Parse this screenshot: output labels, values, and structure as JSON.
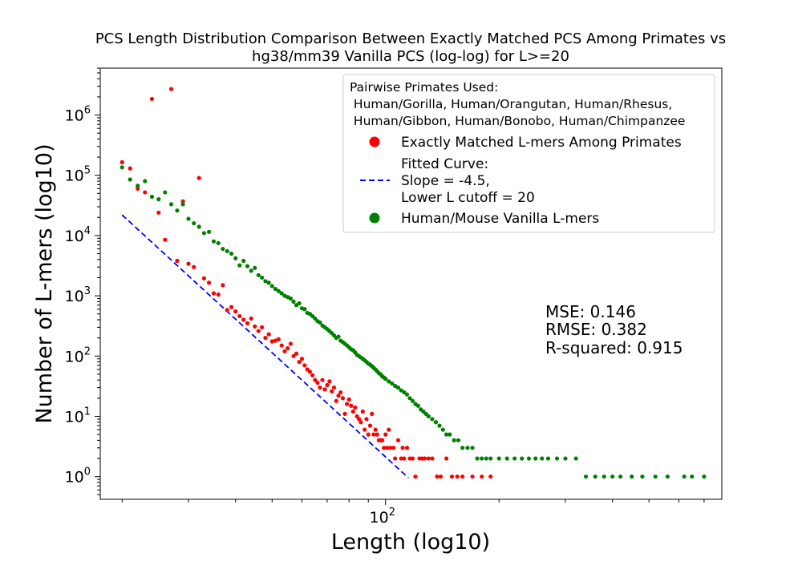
{
  "chart_data": {
    "type": "scatter",
    "title_lines": [
      "PCS Length Distribution Comparison Between Exactly Matched PCS Among Primates vs",
      "hg38/mm39 Vanilla PCS (log-log) for L>=20"
    ],
    "xlabel": "Length (log10)",
    "ylabel": "Number of L-mers (log10)",
    "x_scale": "log",
    "y_scale": "log",
    "xlim": [
      17.5,
      780
    ],
    "ylim": [
      0.42,
      6000000
    ],
    "x_ticks": [
      {
        "value": 100,
        "base": "10",
        "exp": "2"
      }
    ],
    "y_ticks": [
      {
        "value": 1,
        "base": "10",
        "exp": "0"
      },
      {
        "value": 10,
        "base": "10",
        "exp": "1"
      },
      {
        "value": 100,
        "base": "10",
        "exp": "2"
      },
      {
        "value": 1000,
        "base": "10",
        "exp": "3"
      },
      {
        "value": 10000,
        "base": "10",
        "exp": "4"
      },
      {
        "value": 100000,
        "base": "10",
        "exp": "5"
      },
      {
        "value": 1000000,
        "base": "10",
        "exp": "6"
      }
    ],
    "grid": false,
    "legend": {
      "placement": "upper right",
      "title_lines": [
        "Pairwise Primates Used:",
        " Human/Gorilla, Human/Orangutan, Human/Rhesus,",
        " Human/Gibbon, Human/Bonobo, Human/Chimpanzee"
      ],
      "entries": [
        {
          "label_lines": [
            "Exactly Matched L-mers Among Primates"
          ],
          "color": "#ff0000",
          "marker": "circle"
        },
        {
          "label_lines": [
            "Fitted Curve:",
            "Slope = -4.5,",
            "Lower L cutoff = 20"
          ],
          "color": "#0000ff",
          "marker": "dashed-line"
        },
        {
          "label_lines": [
            "Human/Mouse Vanilla L-mers"
          ],
          "color": "#008000",
          "marker": "circle"
        }
      ]
    },
    "stats_lines": [
      "MSE: 0.146",
      "RMSE: 0.382",
      "R-squared: 0.915"
    ],
    "fitted_curve": {
      "slope": -4.5,
      "x_start": 20,
      "x_end": 115,
      "y_start": 22000,
      "y_end": 0.95
    },
    "series": [
      {
        "name": "Exactly Matched L-mers Among Primates",
        "color": "#ff0000",
        "points": [
          [
            20,
            165000
          ],
          [
            21,
            130000
          ],
          [
            22,
            60000
          ],
          [
            23,
            52000
          ],
          [
            24,
            1850000
          ],
          [
            25,
            24000
          ],
          [
            26,
            8500
          ],
          [
            27,
            2700000
          ],
          [
            28,
            3800
          ],
          [
            29,
            37000
          ],
          [
            30,
            3400
          ],
          [
            31,
            3000
          ],
          [
            32,
            90000
          ],
          [
            33,
            1950
          ],
          [
            34,
            1650
          ],
          [
            35,
            1100
          ],
          [
            36,
            1050
          ],
          [
            37,
            1500
          ],
          [
            38,
            580
          ],
          [
            39,
            650
          ],
          [
            40,
            550
          ],
          [
            41,
            460
          ],
          [
            42,
            400
          ],
          [
            43,
            350
          ],
          [
            44,
            420
          ],
          [
            45,
            310
          ],
          [
            46,
            260
          ],
          [
            47,
            300
          ],
          [
            48,
            200
          ],
          [
            49,
            230
          ],
          [
            50,
            175
          ],
          [
            51,
            180
          ],
          [
            52,
            190
          ],
          [
            53,
            150
          ],
          [
            54,
            120
          ],
          [
            55,
            135
          ],
          [
            56,
            160
          ],
          [
            57,
            100
          ],
          [
            58,
            110
          ],
          [
            59,
            80
          ],
          [
            60,
            90
          ],
          [
            61,
            70
          ],
          [
            62,
            60
          ],
          [
            63,
            55
          ],
          [
            64,
            48
          ],
          [
            65,
            40
          ],
          [
            66,
            36
          ],
          [
            67,
            30
          ],
          [
            68,
            40
          ],
          [
            69,
            28
          ],
          [
            70,
            33
          ],
          [
            71,
            38
          ],
          [
            72,
            26
          ],
          [
            73,
            30
          ],
          [
            74,
            18
          ],
          [
            75,
            22
          ],
          [
            76,
            25
          ],
          [
            77,
            20
          ],
          [
            78,
            11
          ],
          [
            79,
            16
          ],
          [
            80,
            19
          ],
          [
            81,
            15
          ],
          [
            82,
            12
          ],
          [
            83,
            14
          ],
          [
            84,
            10
          ],
          [
            85,
            9
          ],
          [
            86,
            8
          ],
          [
            87,
            12
          ],
          [
            88,
            6
          ],
          [
            89,
            9
          ],
          [
            90,
            5
          ],
          [
            91,
            7
          ],
          [
            92,
            11
          ],
          [
            93,
            5
          ],
          [
            94,
            6
          ],
          [
            95,
            5
          ],
          [
            96,
            4
          ],
          [
            97,
            4
          ],
          [
            98,
            4
          ],
          [
            99,
            3
          ],
          [
            100,
            5
          ],
          [
            101,
            3
          ],
          [
            102,
            6
          ],
          [
            103,
            3
          ],
          [
            105,
            3
          ],
          [
            106,
            2
          ],
          [
            108,
            4
          ],
          [
            110,
            2
          ],
          [
            111,
            3
          ],
          [
            112,
            2
          ],
          [
            114,
            3
          ],
          [
            116,
            2
          ],
          [
            118,
            2
          ],
          [
            120,
            1
          ],
          [
            123,
            2
          ],
          [
            125,
            2
          ],
          [
            127,
            2
          ],
          [
            130,
            2
          ],
          [
            133,
            2
          ],
          [
            137,
            1
          ],
          [
            140,
            1
          ],
          [
            145,
            2
          ],
          [
            150,
            1
          ],
          [
            155,
            1
          ],
          [
            160,
            1
          ],
          [
            170,
            1
          ],
          [
            180,
            1
          ],
          [
            190,
            1
          ]
        ]
      },
      {
        "name": "Human/Mouse Vanilla L-mers",
        "color": "#008000",
        "points": [
          [
            20,
            135000
          ],
          [
            21,
            85000
          ],
          [
            22,
            67000
          ],
          [
            23,
            80000
          ],
          [
            24,
            44000
          ],
          [
            25,
            40000
          ],
          [
            26,
            52000
          ],
          [
            27,
            33000
          ],
          [
            28,
            26000
          ],
          [
            29,
            33000
          ],
          [
            30,
            19000
          ],
          [
            31,
            16000
          ],
          [
            32,
            14000
          ],
          [
            33,
            11000
          ],
          [
            34,
            11500
          ],
          [
            35,
            8000
          ],
          [
            36,
            7500
          ],
          [
            37,
            6000
          ],
          [
            38,
            5500
          ],
          [
            39,
            5000
          ],
          [
            40,
            4200
          ],
          [
            41,
            3200
          ],
          [
            42,
            3800
          ],
          [
            43,
            3100
          ],
          [
            44,
            2600
          ],
          [
            45,
            2900
          ],
          [
            46,
            2200
          ],
          [
            47,
            2000
          ],
          [
            48,
            1750
          ],
          [
            49,
            1650
          ],
          [
            50,
            1450
          ],
          [
            51,
            1300
          ],
          [
            52,
            1200
          ],
          [
            53,
            1100
          ],
          [
            54,
            1000
          ],
          [
            55,
            950
          ],
          [
            56,
            900
          ],
          [
            57,
            800
          ],
          [
            58,
            700
          ],
          [
            59,
            750
          ],
          [
            60,
            620
          ],
          [
            61,
            600
          ],
          [
            62,
            520
          ],
          [
            63,
            500
          ],
          [
            64,
            460
          ],
          [
            65,
            420
          ],
          [
            66,
            380
          ],
          [
            67,
            360
          ],
          [
            68,
            320
          ],
          [
            69,
            300
          ],
          [
            70,
            280
          ],
          [
            71,
            260
          ],
          [
            72,
            240
          ],
          [
            73,
            220
          ],
          [
            74,
            200
          ],
          [
            75,
            210
          ],
          [
            76,
            180
          ],
          [
            77,
            170
          ],
          [
            78,
            160
          ],
          [
            79,
            150
          ],
          [
            80,
            140
          ],
          [
            81,
            130
          ],
          [
            82,
            125
          ],
          [
            83,
            115
          ],
          [
            84,
            105
          ],
          [
            85,
            100
          ],
          [
            86,
            95
          ],
          [
            87,
            90
          ],
          [
            88,
            85
          ],
          [
            89,
            80
          ],
          [
            90,
            75
          ],
          [
            91,
            72
          ],
          [
            92,
            68
          ],
          [
            93,
            64
          ],
          [
            94,
            60
          ],
          [
            95,
            56
          ],
          [
            96,
            52
          ],
          [
            97,
            50
          ],
          [
            98,
            46
          ],
          [
            99,
            44
          ],
          [
            100,
            42
          ],
          [
            102,
            38
          ],
          [
            104,
            35
          ],
          [
            106,
            32
          ],
          [
            108,
            30
          ],
          [
            110,
            27
          ],
          [
            112,
            25
          ],
          [
            114,
            23
          ],
          [
            116,
            20
          ],
          [
            118,
            18
          ],
          [
            120,
            16
          ],
          [
            122,
            15
          ],
          [
            124,
            13
          ],
          [
            126,
            12
          ],
          [
            128,
            11
          ],
          [
            130,
            10
          ],
          [
            133,
            9
          ],
          [
            136,
            8
          ],
          [
            139,
            7
          ],
          [
            142,
            6
          ],
          [
            145,
            5
          ],
          [
            148,
            5
          ],
          [
            152,
            4
          ],
          [
            156,
            4
          ],
          [
            160,
            3
          ],
          [
            165,
            3
          ],
          [
            170,
            3
          ],
          [
            175,
            2
          ],
          [
            180,
            2
          ],
          [
            185,
            2
          ],
          [
            190,
            2
          ],
          [
            200,
            2
          ],
          [
            210,
            2
          ],
          [
            220,
            2
          ],
          [
            230,
            2
          ],
          [
            240,
            2
          ],
          [
            250,
            2
          ],
          [
            260,
            2
          ],
          [
            270,
            2
          ],
          [
            285,
            2
          ],
          [
            300,
            2
          ],
          [
            320,
            2
          ],
          [
            340,
            1
          ],
          [
            360,
            1
          ],
          [
            380,
            1
          ],
          [
            400,
            1
          ],
          [
            420,
            1
          ],
          [
            450,
            1
          ],
          [
            480,
            1
          ],
          [
            520,
            1
          ],
          [
            560,
            1
          ],
          [
            620,
            1
          ],
          [
            650,
            1
          ],
          [
            700,
            1
          ]
        ]
      }
    ]
  }
}
